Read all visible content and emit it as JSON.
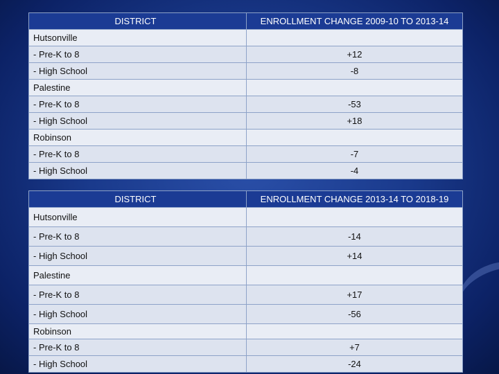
{
  "tables": [
    {
      "header": {
        "district": "DISTRICT",
        "change": "ENROLLMENT CHANGE 2009-10 TO 2013-14"
      },
      "rows": [
        {
          "label": "Hutsonville",
          "value": ""
        },
        {
          "label": "- Pre-K to 8",
          "value": "+12"
        },
        {
          "label": "- High School",
          "value": "-8"
        },
        {
          "label": "Palestine",
          "value": ""
        },
        {
          "label": "- Pre-K to 8",
          "value": "-53"
        },
        {
          "label": "- High School",
          "value": "+18"
        },
        {
          "label": "Robinson",
          "value": ""
        },
        {
          "label": "- Pre-K to 8",
          "value": "-7"
        },
        {
          "label": "- High School",
          "value": "-4"
        }
      ]
    },
    {
      "header": {
        "district": "DISTRICT",
        "change": "ENROLLMENT CHANGE 2013-14 TO 2018-19"
      },
      "rows": [
        {
          "label": "Hutsonville",
          "value": ""
        },
        {
          "label": "- Pre-K to 8",
          "value": "-14"
        },
        {
          "label": "- High School",
          "value": "+14"
        },
        {
          "label": "Palestine",
          "value": ""
        },
        {
          "label": "- Pre-K to 8",
          "value": "+17"
        },
        {
          "label": "- High School",
          "value": "-56"
        },
        {
          "label": "Robinson",
          "value": ""
        },
        {
          "label": "- Pre-K to 8",
          "value": "+7"
        },
        {
          "label": "- High School",
          "value": "-24"
        }
      ]
    }
  ]
}
